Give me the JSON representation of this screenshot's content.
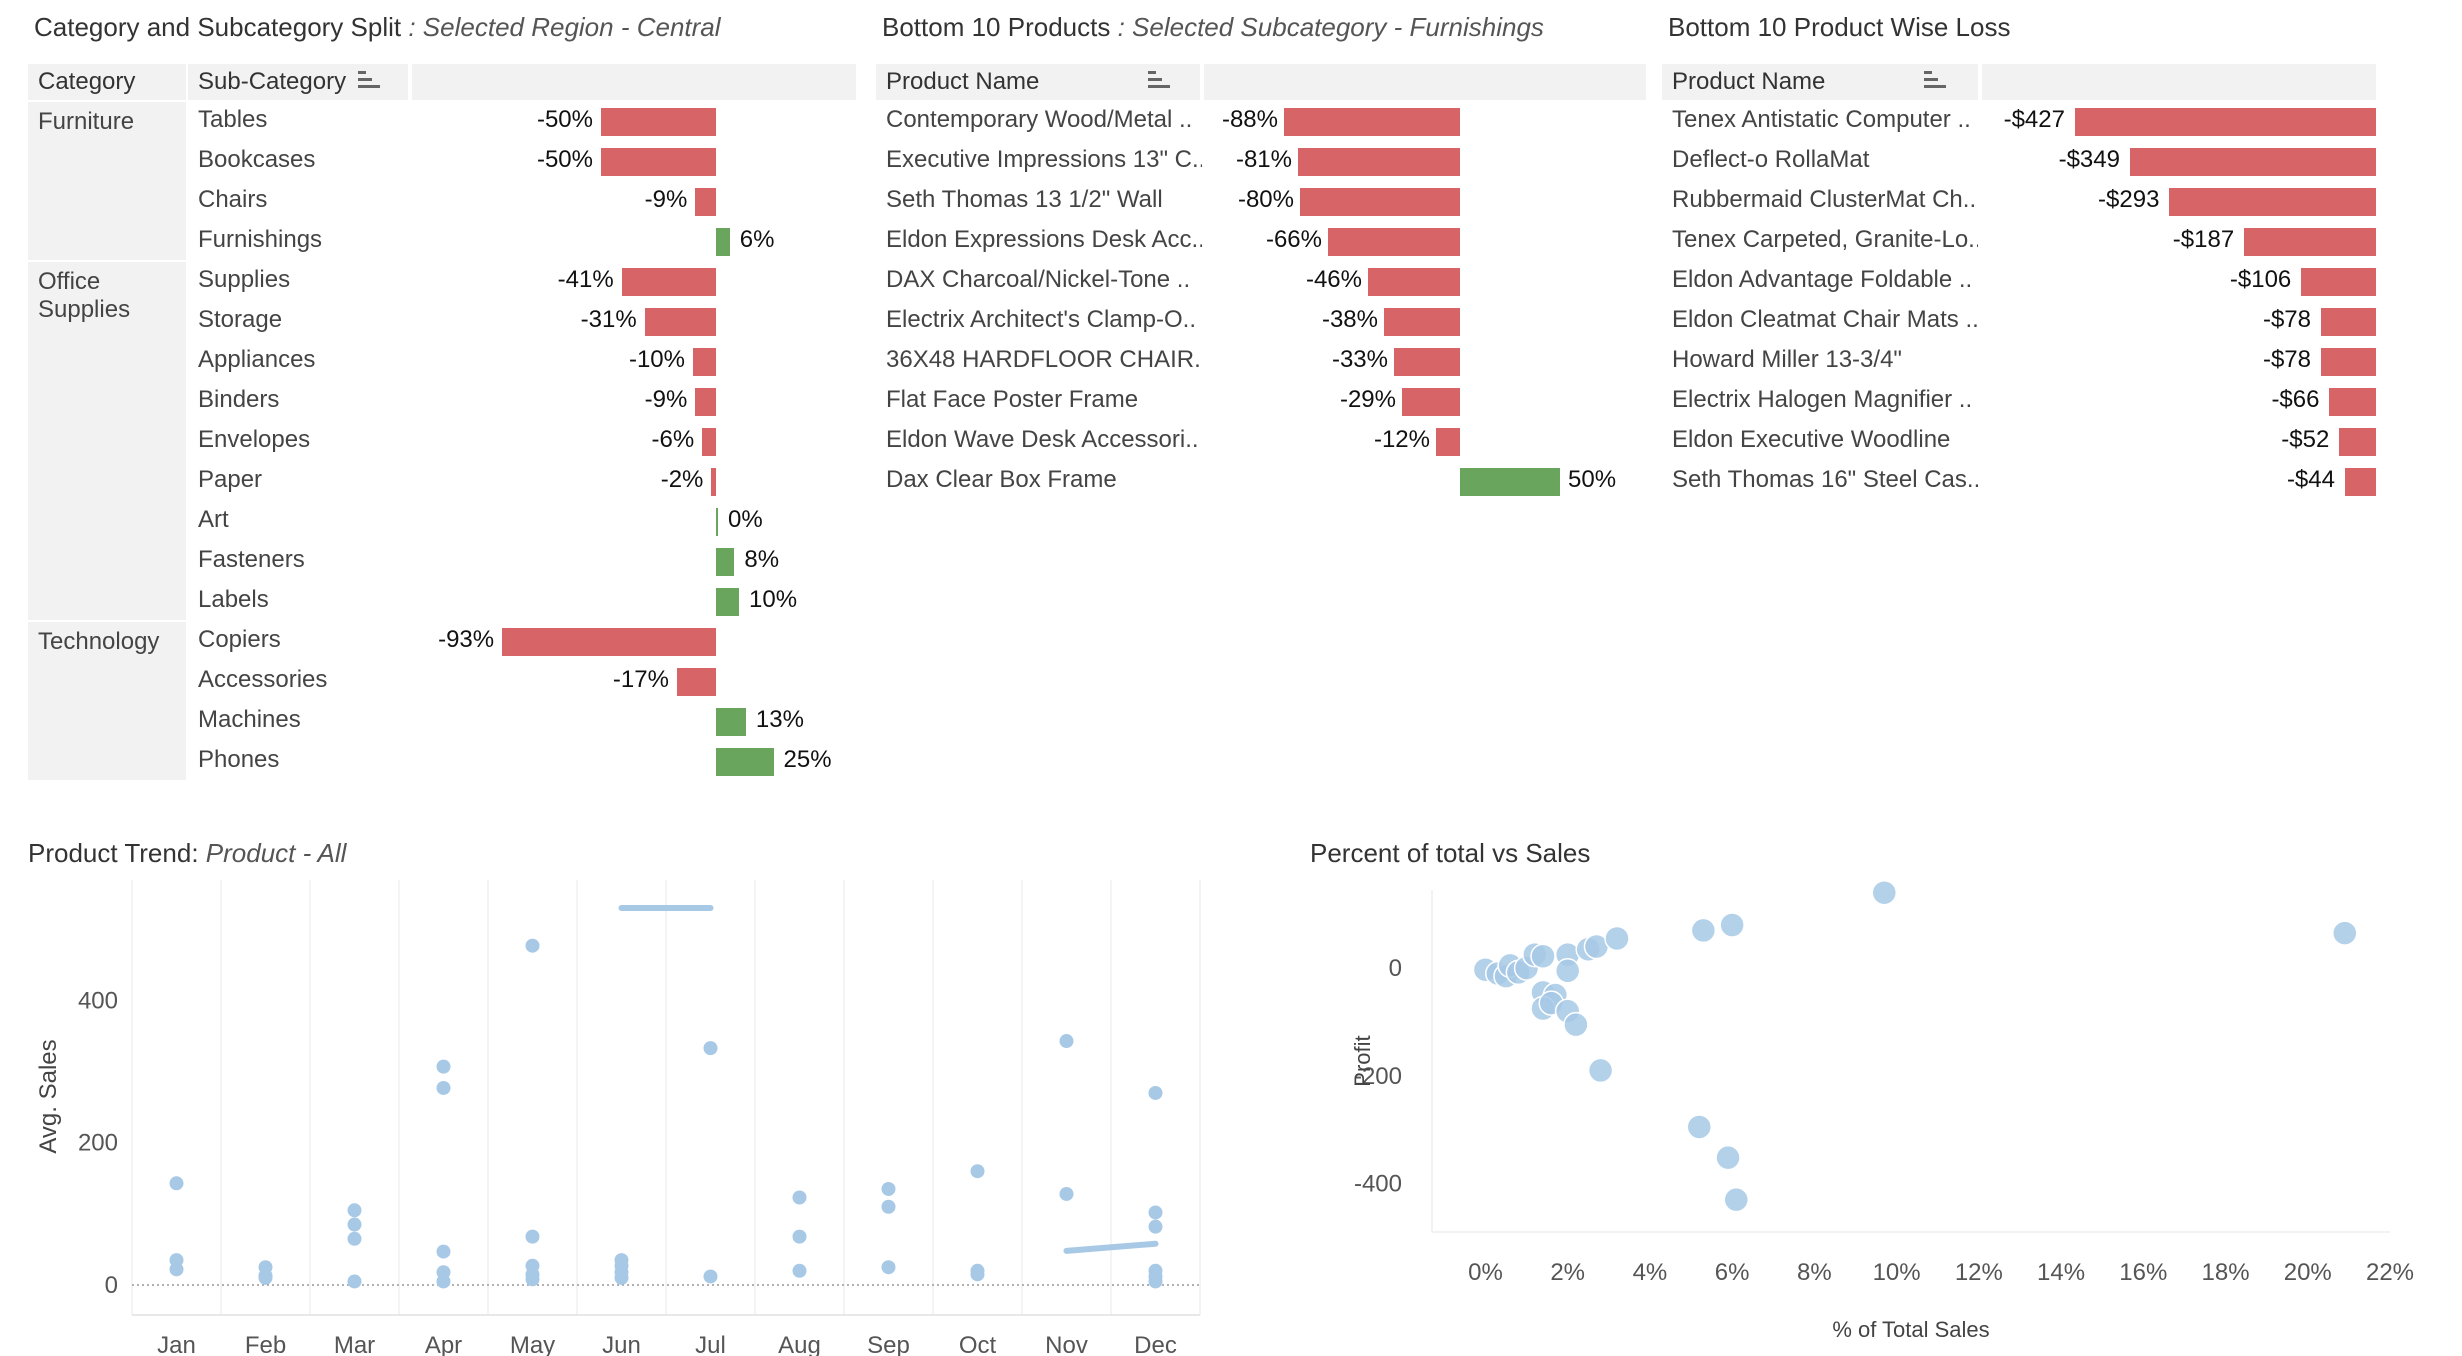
{
  "colors": {
    "negative": "#d76467",
    "positive": "#6aa55e",
    "point": "#a7c9e6"
  },
  "panel1": {
    "title": "Category and Subcategory Split",
    "subtitle": ":  Selected Region -  Central",
    "headers": [
      "Category",
      "Sub-Category"
    ],
    "categories": [
      {
        "name": "Furniture",
        "rows": [
          [
            "Tables",
            -50,
            "-50%"
          ],
          [
            "Bookcases",
            -50,
            "-50%"
          ],
          [
            "Chairs",
            -9,
            "-9%"
          ],
          [
            "Furnishings",
            6,
            "6%"
          ]
        ]
      },
      {
        "name": "Office\nSupplies",
        "rows": [
          [
            "Supplies",
            -41,
            "-41%"
          ],
          [
            "Storage",
            -31,
            "-31%"
          ],
          [
            "Appliances",
            -10,
            "-10%"
          ],
          [
            "Binders",
            -9,
            "-9%"
          ],
          [
            "Envelopes",
            -6,
            "-6%"
          ],
          [
            "Paper",
            -2,
            "-2%"
          ],
          [
            "Art",
            0,
            "0%"
          ],
          [
            "Fasteners",
            8,
            "8%"
          ],
          [
            "Labels",
            10,
            "10%"
          ]
        ]
      },
      {
        "name": "Technology",
        "rows": [
          [
            "Copiers",
            -93,
            "-93%"
          ],
          [
            "Accessories",
            -17,
            "-17%"
          ],
          [
            "Machines",
            13,
            "13%"
          ],
          [
            "Phones",
            25,
            "25%"
          ]
        ]
      }
    ]
  },
  "panel2": {
    "title": "Bottom 10 Products",
    "subtitle": ":  Selected Subcategory - Furnishings",
    "header": "Product Name",
    "rows": [
      [
        "Contemporary Wood/Metal ..",
        -88,
        "-88%"
      ],
      [
        "Executive Impressions 13\" C..",
        -81,
        "-81%"
      ],
      [
        "Seth Thomas 13 1/2\" Wall",
        -80,
        "-80%"
      ],
      [
        "Eldon Expressions Desk Acc..",
        -66,
        "-66%"
      ],
      [
        "DAX Charcoal/Nickel-Tone ..",
        -46,
        "-46%"
      ],
      [
        "Electrix Architect's Clamp-O..",
        -38,
        "-38%"
      ],
      [
        "36X48 HARDFLOOR CHAIR..",
        -33,
        "-33%"
      ],
      [
        "Flat Face Poster Frame",
        -29,
        "-29%"
      ],
      [
        "Eldon Wave Desk Accessori..",
        -12,
        "-12%"
      ],
      [
        "Dax Clear Box Frame",
        50,
        "50%"
      ]
    ]
  },
  "panel3": {
    "title": "Bottom 10 Product Wise Loss",
    "header": "Product Name",
    "rows": [
      [
        "Tenex Antistatic Computer ..",
        -427,
        "-$427"
      ],
      [
        "Deflect-o RollaMat",
        -349,
        "-$349"
      ],
      [
        "Rubbermaid ClusterMat Ch..",
        -293,
        "-$293"
      ],
      [
        "Tenex Carpeted, Granite-Lo..",
        -187,
        "-$187"
      ],
      [
        "Eldon Advantage Foldable ..",
        -106,
        "-$106"
      ],
      [
        "Eldon Cleatmat Chair Mats ..",
        -78,
        "-$78"
      ],
      [
        "Howard Miller 13-3/4\"",
        -78,
        "-$78"
      ],
      [
        "Electrix Halogen Magnifier ..",
        -66,
        "-$66"
      ],
      [
        "Eldon Executive Woodline",
        -52,
        "-$52"
      ],
      [
        "Seth Thomas 16\" Steel Cas..",
        -44,
        "-$44"
      ]
    ]
  },
  "trend": {
    "title": "Product Trend:",
    "subtitle": "Product - All",
    "chart_data": {
      "type": "scatter",
      "categories": [
        "Jan",
        "Feb",
        "Mar",
        "Apr",
        "May",
        "Jun",
        "Jul",
        "Aug",
        "Sep",
        "Oct",
        "Nov",
        "Dec"
      ],
      "ylabel": "Avg. Sales",
      "yticks": [
        "0",
        "200",
        "400"
      ],
      "ylim": [
        0,
        530
      ],
      "points": [
        [
          0,
          143
        ],
        [
          0,
          35
        ],
        [
          0,
          22
        ],
        [
          1,
          25
        ],
        [
          1,
          13
        ],
        [
          1,
          10
        ],
        [
          2,
          105
        ],
        [
          2,
          85
        ],
        [
          2,
          65
        ],
        [
          2,
          5
        ],
        [
          3,
          307
        ],
        [
          3,
          277
        ],
        [
          3,
          47
        ],
        [
          3,
          18
        ],
        [
          3,
          5
        ],
        [
          4,
          477
        ],
        [
          4,
          68
        ],
        [
          4,
          27
        ],
        [
          4,
          15
        ],
        [
          4,
          8
        ],
        [
          5,
          35
        ],
        [
          5,
          27
        ],
        [
          5,
          18
        ],
        [
          5,
          10
        ],
        [
          6,
          333
        ],
        [
          6,
          12
        ],
        [
          7,
          123
        ],
        [
          7,
          68
        ],
        [
          7,
          20
        ],
        [
          8,
          135
        ],
        [
          8,
          110
        ],
        [
          8,
          25
        ],
        [
          9,
          160
        ],
        [
          9,
          20
        ],
        [
          9,
          15
        ],
        [
          10,
          343
        ],
        [
          10,
          128
        ],
        [
          11,
          270
        ],
        [
          11,
          102
        ],
        [
          11,
          82
        ],
        [
          11,
          20
        ],
        [
          11,
          12
        ],
        [
          11,
          5
        ]
      ],
      "segments": [
        {
          "from": [
            5,
            530
          ],
          "to": [
            6,
            530
          ]
        },
        {
          "from": [
            10,
            48
          ],
          "to": [
            11,
            58
          ]
        }
      ]
    }
  },
  "pct": {
    "title": "Percent of total vs Sales",
    "chart_data": {
      "type": "scatter",
      "xlabel": "% of Total Sales",
      "ylabel": "Profit",
      "xticks": [
        "0%",
        "2%",
        "4%",
        "6%",
        "8%",
        "10%",
        "12%",
        "14%",
        "16%",
        "18%",
        "20%",
        "22%"
      ],
      "yticks": [
        "0",
        "-200",
        "-400"
      ],
      "xlim": [
        -1.3,
        22
      ],
      "ylim": [
        -490,
        145
      ],
      "points": [
        [
          0.0,
          -3
        ],
        [
          0.3,
          -10
        ],
        [
          0.5,
          -15
        ],
        [
          0.6,
          5
        ],
        [
          0.8,
          -8
        ],
        [
          1.0,
          0
        ],
        [
          1.2,
          25
        ],
        [
          1.4,
          22
        ],
        [
          1.4,
          -45
        ],
        [
          1.7,
          -50
        ],
        [
          1.4,
          -75
        ],
        [
          1.6,
          -65
        ],
        [
          2.0,
          25
        ],
        [
          2.0,
          -5
        ],
        [
          2.0,
          -80
        ],
        [
          2.2,
          -105
        ],
        [
          2.5,
          35
        ],
        [
          2.7,
          40
        ],
        [
          2.8,
          -190
        ],
        [
          3.2,
          55
        ],
        [
          5.2,
          -295
        ],
        [
          5.3,
          70
        ],
        [
          6.0,
          80
        ],
        [
          5.9,
          -352
        ],
        [
          6.1,
          -430
        ],
        [
          9.7,
          140
        ],
        [
          20.9,
          65
        ]
      ]
    }
  }
}
